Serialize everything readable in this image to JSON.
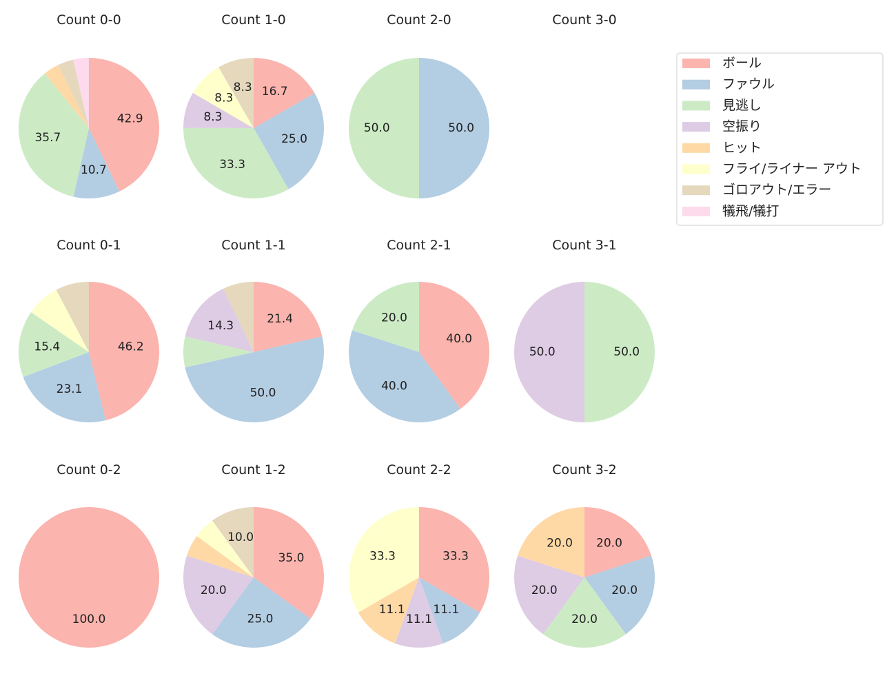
{
  "chart_data": {
    "type": "pie",
    "colors": [
      "#fbb4ae",
      "#b3cde3",
      "#ccebc5",
      "#decbe4",
      "#fed9a6",
      "#ffffcc",
      "#e5d8bd",
      "#fddaec"
    ],
    "legend": {
      "placement": "right",
      "entries": [
        "ボール",
        "ファウル",
        "見逃し",
        "空振り",
        "ヒット",
        "フライ/ライナー アウト",
        "ゴロアウト/エラー",
        "犠飛/犠打"
      ]
    },
    "charts": [
      {
        "title": "Count 0-0",
        "values": [
          42.9,
          10.7,
          35.7,
          0,
          3.6,
          0,
          3.6,
          3.6
        ]
      },
      {
        "title": "Count 1-0",
        "values": [
          16.7,
          25.0,
          33.3,
          8.3,
          0,
          8.3,
          8.3,
          0
        ]
      },
      {
        "title": "Count 2-0",
        "values": [
          0,
          50.0,
          50.0,
          0,
          0,
          0,
          0,
          0
        ]
      },
      {
        "title": "Count 3-0",
        "values": []
      },
      {
        "title": "Count 0-1",
        "values": [
          46.2,
          23.1,
          15.4,
          0,
          0,
          7.7,
          7.7,
          0
        ]
      },
      {
        "title": "Count 1-1",
        "values": [
          21.4,
          50.0,
          7.1,
          14.3,
          0,
          0,
          7.1,
          0
        ]
      },
      {
        "title": "Count 2-1",
        "values": [
          40.0,
          40.0,
          20.0,
          0,
          0,
          0,
          0,
          0
        ]
      },
      {
        "title": "Count 3-1",
        "values": [
          0,
          0,
          50.0,
          50.0,
          0,
          0,
          0,
          0
        ]
      },
      {
        "title": "Count 0-2",
        "values": [
          100.0,
          0,
          0,
          0,
          0,
          0,
          0,
          0
        ]
      },
      {
        "title": "Count 1-2",
        "values": [
          35.0,
          25.0,
          0,
          20.0,
          5.0,
          5.0,
          10.0,
          0
        ]
      },
      {
        "title": "Count 2-2",
        "values": [
          33.3,
          11.1,
          0,
          11.1,
          11.1,
          33.3,
          0,
          0
        ]
      },
      {
        "title": "Count 3-2",
        "values": [
          20.0,
          20.0,
          20.0,
          20.0,
          20.0,
          0,
          0,
          0
        ]
      }
    ]
  }
}
